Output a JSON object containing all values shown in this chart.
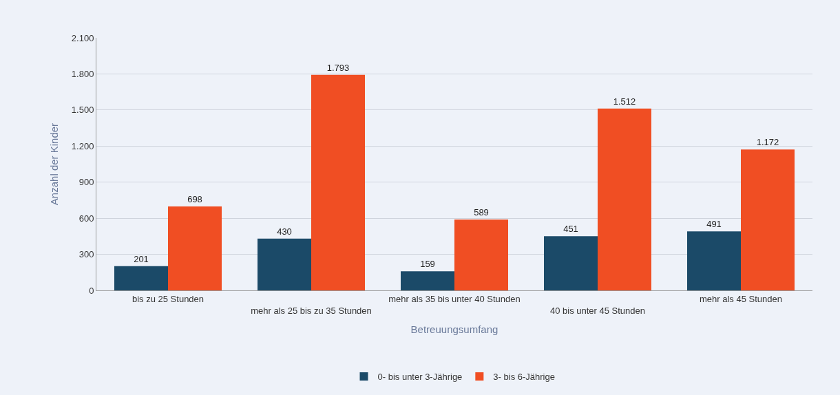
{
  "chart_data": {
    "type": "bar",
    "xlabel": "Betreuungsumfang",
    "ylabel": "Anzahl der Kinder",
    "categories": [
      "bis zu 25 Stunden",
      "mehr als 25 bis zu 35 Stunden",
      "mehr als 35 bis unter 40 Stunden",
      "40 bis unter 45 Stunden",
      "mehr als 45 Stunden"
    ],
    "series": [
      {
        "name": "0- bis unter 3-Jährige",
        "color": "#1b4a68",
        "values": [
          201,
          430,
          159,
          451,
          491
        ],
        "value_labels": [
          "201",
          "430",
          "159",
          "451",
          "491"
        ]
      },
      {
        "name": "3- bis 6-Jährige",
        "color": "#f04e23",
        "values": [
          698,
          1793,
          589,
          1512,
          1172
        ],
        "value_labels": [
          "698",
          "1.793",
          "589",
          "1.512",
          "1.172"
        ]
      }
    ],
    "ylim": [
      0,
      2100
    ],
    "yticks": [
      0,
      300,
      600,
      900,
      {
        "value": 1200,
        "label": "1.200"
      },
      {
        "value": 1500,
        "label": "1.500"
      },
      {
        "value": 1800,
        "label": "1.800"
      },
      {
        "value": 2100,
        "label": "2.100"
      }
    ],
    "grid": "y",
    "legend": "bottom"
  }
}
